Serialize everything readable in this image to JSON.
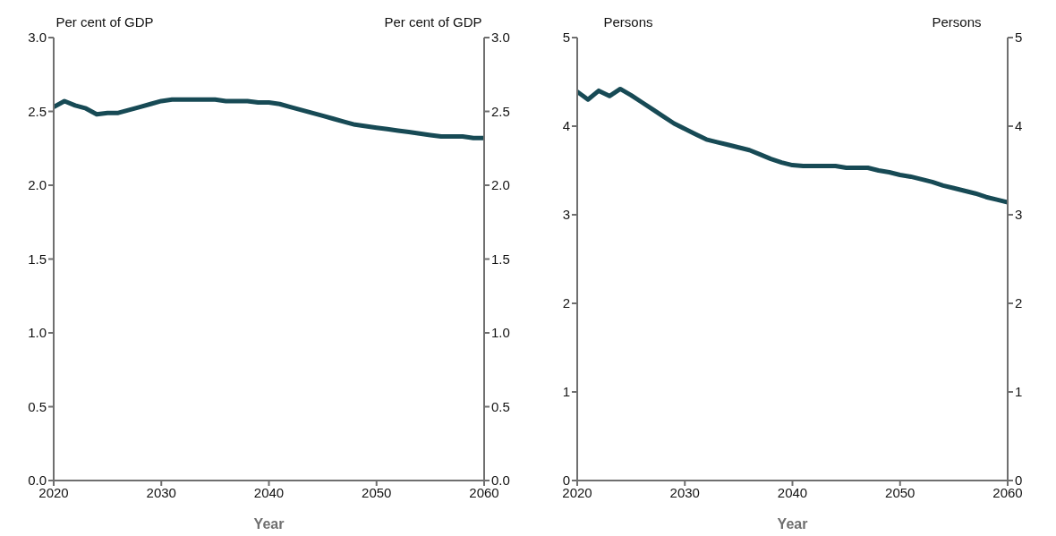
{
  "chart_data": [
    {
      "type": "line",
      "xlabel": "Year",
      "ylabel": "Per cent of GDP",
      "y2label": "Per cent of GDP",
      "x": [
        2020,
        2021,
        2022,
        2023,
        2024,
        2025,
        2026,
        2027,
        2028,
        2029,
        2030,
        2031,
        2032,
        2033,
        2034,
        2035,
        2036,
        2037,
        2038,
        2039,
        2040,
        2041,
        2042,
        2043,
        2044,
        2045,
        2046,
        2047,
        2048,
        2049,
        2050,
        2051,
        2052,
        2053,
        2054,
        2055,
        2056,
        2057,
        2058,
        2059,
        2060
      ],
      "series": [
        {
          "color": "#174a55",
          "values": [
            2.53,
            2.57,
            2.54,
            2.52,
            2.48,
            2.49,
            2.49,
            2.51,
            2.53,
            2.55,
            2.57,
            2.58,
            2.58,
            2.58,
            2.58,
            2.58,
            2.57,
            2.57,
            2.57,
            2.56,
            2.56,
            2.55,
            2.53,
            2.51,
            2.49,
            2.47,
            2.45,
            2.43,
            2.41,
            2.4,
            2.39,
            2.38,
            2.37,
            2.36,
            2.35,
            2.34,
            2.33,
            2.33,
            2.33,
            2.32,
            2.32
          ]
        }
      ],
      "xlim": [
        2020,
        2060
      ],
      "xticks": [
        2020,
        2030,
        2040,
        2050,
        2060
      ],
      "ylim": [
        0,
        3
      ],
      "yticks": [
        {
          "value": 0,
          "label": "0.0"
        },
        0.5,
        {
          "value": 1,
          "label": "1.0"
        },
        1.5,
        {
          "value": 2,
          "label": "2.0"
        },
        2.5,
        {
          "value": 3,
          "label": "3.0"
        }
      ],
      "y2lim": [
        0,
        3
      ],
      "y2ticks": [
        {
          "value": 0,
          "label": "0.0"
        },
        0.5,
        {
          "value": 1,
          "label": "1.0"
        },
        1.5,
        {
          "value": 2,
          "label": "2.0"
        },
        2.5,
        {
          "value": 3,
          "label": "3.0"
        }
      ],
      "marker": "none",
      "line_style": "solid"
    },
    {
      "type": "line",
      "xlabel": "Year",
      "ylabel": "Persons",
      "y2label": "Persons",
      "x": [
        2020,
        2021,
        2022,
        2023,
        2024,
        2025,
        2026,
        2027,
        2028,
        2029,
        2030,
        2031,
        2032,
        2033,
        2034,
        2035,
        2036,
        2037,
        2038,
        2039,
        2040,
        2041,
        2042,
        2043,
        2044,
        2045,
        2046,
        2047,
        2048,
        2049,
        2050,
        2051,
        2052,
        2053,
        2054,
        2055,
        2056,
        2057,
        2058,
        2059,
        2060
      ],
      "series": [
        {
          "color": "#174a55",
          "values": [
            4.39,
            4.3,
            4.4,
            4.34,
            4.42,
            4.35,
            4.27,
            4.19,
            4.11,
            4.03,
            3.97,
            3.91,
            3.85,
            3.82,
            3.79,
            3.76,
            3.73,
            3.68,
            3.63,
            3.59,
            3.56,
            3.55,
            3.55,
            3.55,
            3.55,
            3.53,
            3.53,
            3.53,
            3.5,
            3.48,
            3.45,
            3.43,
            3.4,
            3.37,
            3.33,
            3.3,
            3.27,
            3.24,
            3.2,
            3.17,
            3.14
          ]
        }
      ],
      "xlim": [
        2020,
        2060
      ],
      "xticks": [
        2020,
        2030,
        2040,
        2050,
        2060
      ],
      "ylim": [
        0,
        5
      ],
      "yticks": [
        0,
        1,
        2,
        3,
        4,
        5
      ],
      "y2lim": [
        0,
        5
      ],
      "y2ticks": [
        0,
        1,
        2,
        3,
        4,
        5
      ],
      "marker": "none",
      "line_style": "solid"
    }
  ]
}
